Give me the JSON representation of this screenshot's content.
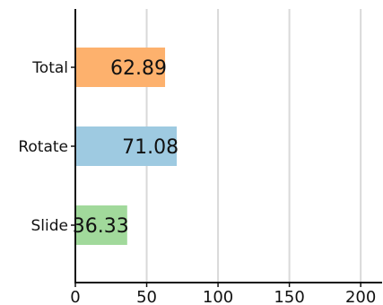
{
  "chart_data": {
    "type": "bar",
    "orientation": "horizontal",
    "categories": [
      "Total",
      "Rotate",
      "Slide"
    ],
    "values": [
      62.89,
      71.08,
      36.33
    ],
    "value_labels": [
      "62.89",
      "71.08",
      "36.33"
    ],
    "colors": [
      "#fdb16d",
      "#9ecae1",
      "#a1d99b"
    ],
    "title": "",
    "xlabel": "",
    "ylabel": "",
    "xlim": [
      0,
      215
    ],
    "xticks": [
      0,
      50,
      100,
      150,
      200
    ],
    "xtick_labels": [
      "0",
      "50",
      "100",
      "150",
      "200"
    ],
    "grid": "vertical",
    "grid_color": "#d9d9d9",
    "axis_color": "#111111"
  }
}
